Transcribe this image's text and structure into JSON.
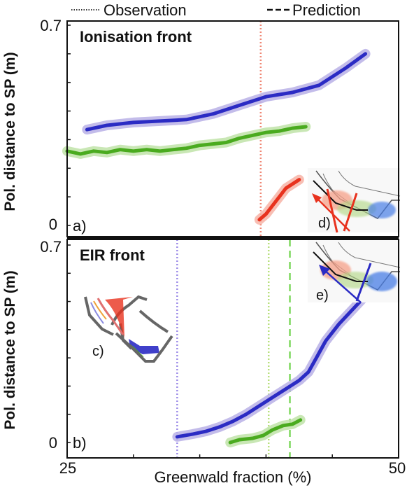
{
  "legend": {
    "observation_label": "Observation",
    "prediction_label": "Prediction"
  },
  "xlabel": "Greenwald fraction (%)",
  "xticks": [
    "25",
    "50"
  ],
  "colors": {
    "blue": "#2b2bc4",
    "blue_band": "#b8b0e6",
    "green": "#4aab1f",
    "green_band": "#bfe3a8",
    "red": "#e8321e",
    "red_band": "#f7b3a6",
    "obs_red": "#f08a78",
    "obs_blue": "#9c8ce8",
    "obs_green": "#b9e07e",
    "pred_green": "#7ed85e"
  },
  "chart_data": [
    {
      "type": "line",
      "panel_letter": "a)",
      "title": "Ionisation front",
      "ylabel": "Pol. distance to SP (m)",
      "yticks": [
        "0.7",
        "0"
      ],
      "xlim": [
        25,
        50
      ],
      "ylim": [
        0,
        0.7
      ],
      "grid": false,
      "inset_label": "d)",
      "vlines": [
        {
          "x": 39.6,
          "style": "dotted",
          "color": "obs_red"
        }
      ],
      "series": [
        {
          "color": "blue",
          "x": [
            26.5,
            28,
            30,
            32,
            34,
            36,
            38,
            40,
            42,
            44,
            46,
            47.5
          ],
          "y": [
            0.335,
            0.35,
            0.36,
            0.365,
            0.37,
            0.39,
            0.42,
            0.45,
            0.465,
            0.49,
            0.55,
            0.6
          ]
        },
        {
          "color": "green",
          "x": [
            25,
            26,
            27,
            28,
            29,
            30,
            31,
            32,
            33,
            34,
            35,
            36,
            37,
            38,
            39,
            40,
            41,
            42,
            43
          ],
          "y": [
            0.26,
            0.25,
            0.26,
            0.255,
            0.265,
            0.26,
            0.265,
            0.26,
            0.265,
            0.27,
            0.28,
            0.285,
            0.29,
            0.305,
            0.315,
            0.325,
            0.33,
            0.34,
            0.345
          ]
        },
        {
          "color": "red",
          "x": [
            39.5,
            40.0,
            40.5,
            41.0,
            41.5,
            42.5
          ],
          "y": [
            0.02,
            0.04,
            0.07,
            0.1,
            0.13,
            0.16
          ]
        }
      ]
    },
    {
      "type": "line",
      "panel_letter": "b)",
      "title": "EIR front",
      "ylabel": "Pol. distance to SP (m)",
      "yticks": [
        "0.7",
        "0"
      ],
      "xlim": [
        25,
        50
      ],
      "ylim": [
        0,
        0.7
      ],
      "grid": false,
      "inset_labels": [
        "c)",
        "e)"
      ],
      "vlines": [
        {
          "x": 33.3,
          "style": "dotted",
          "color": "obs_blue"
        },
        {
          "x": 40.2,
          "style": "dotted",
          "color": "obs_green"
        },
        {
          "x": 41.8,
          "style": "dashed",
          "color": "pred_green"
        }
      ],
      "series": [
        {
          "color": "blue",
          "x": [
            33.3,
            34.5,
            35.5,
            36.5,
            37.5,
            38.5,
            39.5,
            40.5,
            41.5,
            42.5,
            43.2,
            43.8,
            44.5,
            45.5,
            46.5,
            47.3
          ],
          "y": [
            0.02,
            0.03,
            0.04,
            0.055,
            0.075,
            0.1,
            0.13,
            0.16,
            0.19,
            0.22,
            0.25,
            0.3,
            0.36,
            0.42,
            0.47,
            0.51
          ]
        },
        {
          "color": "green",
          "x": [
            37.3,
            38,
            39,
            39.8,
            40.5,
            41.3,
            42,
            42.6
          ],
          "y": [
            0.0,
            0.01,
            0.015,
            0.025,
            0.045,
            0.06,
            0.065,
            0.08
          ]
        }
      ]
    }
  ]
}
